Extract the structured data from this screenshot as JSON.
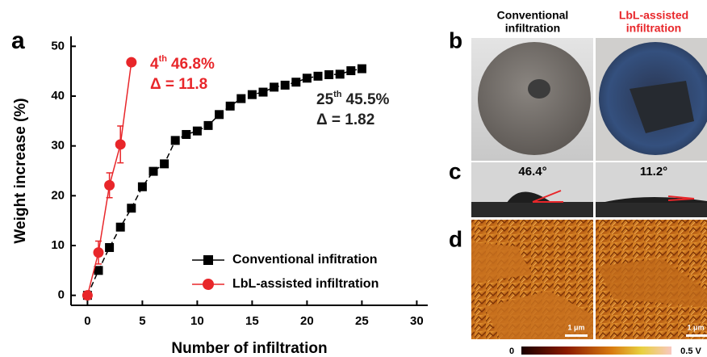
{
  "chart_data": {
    "type": "line",
    "panel_label": "a",
    "xlabel": "Number of infiltration",
    "ylabel": "Weight increase (%)",
    "xlim": [
      -1.5,
      31
    ],
    "ylim": [
      -2,
      52
    ],
    "xticks": [
      0,
      5,
      10,
      15,
      20,
      25,
      30
    ],
    "yticks": [
      0,
      10,
      20,
      30,
      40,
      50
    ],
    "legend": "lower right",
    "series": [
      {
        "name": "Conventional infitration",
        "color": "#000000",
        "marker": "square",
        "x": [
          0,
          1,
          2,
          3,
          4,
          5,
          6,
          7,
          8,
          9,
          10,
          11,
          12,
          13,
          14,
          15,
          16,
          17,
          18,
          19,
          20,
          21,
          22,
          23,
          24,
          25
        ],
        "values": [
          0,
          5,
          9.6,
          13.7,
          17.5,
          21.8,
          24.9,
          26.4,
          31.1,
          32.3,
          33,
          34.1,
          36.3,
          38,
          39.5,
          40.3,
          40.8,
          41.8,
          42.2,
          42.8,
          43.6,
          44,
          44.3,
          44.4,
          45.1,
          45.5
        ]
      },
      {
        "name": "LbL-assisted infiltration",
        "color": "#e8262a",
        "marker": "circle",
        "x": [
          0,
          1,
          2,
          3,
          4
        ],
        "values": [
          0,
          8.6,
          22.1,
          30.3,
          46.8
        ],
        "errors": [
          null,
          2.3,
          2.5,
          3.7,
          null
        ]
      }
    ],
    "annotations": [
      {
        "number": "4",
        "sup": "th",
        "text": "46.8%",
        "delta": "Δ = 11.8",
        "color": "#e8262a"
      },
      {
        "number": "25",
        "sup": "th",
        "text": "45.5%",
        "delta": "Δ = 1.82",
        "color": "#222222"
      }
    ]
  },
  "panels": {
    "b": {
      "label": "b",
      "columns": [
        {
          "line1": "Conventional",
          "line2": "infiltration"
        },
        {
          "line1": "LbL-assisted",
          "line2": "infiltration"
        }
      ]
    },
    "c": {
      "label": "c",
      "angles": [
        "46.4°",
        "11.2°"
      ]
    },
    "d": {
      "label": "d",
      "scale_bars": [
        "1 μm",
        "1 μm"
      ],
      "colorbar": [
        "0",
        "0.5 V"
      ]
    }
  }
}
